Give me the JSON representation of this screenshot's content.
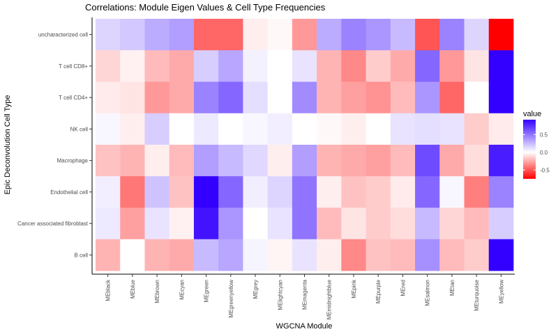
{
  "chart_data": {
    "type": "heatmap",
    "title": "Correlations: Module Eigen Values & Cell Type Frequencies",
    "xlabel": "WGCNA Module",
    "ylabel": "Epic Deconvolution Cell Type",
    "x": [
      "MEblack",
      "MEblue",
      "MEbrown",
      "MEcyan",
      "MEgreen",
      "MEgreenyellow",
      "MEgrey",
      "MElightcyan",
      "MEmagenta",
      "MEmidnightblue",
      "MEpink",
      "MEpurple",
      "MEred",
      "MEsalmon",
      "MEtan",
      "MEturquoise",
      "MEyellow"
    ],
    "y": [
      "uncharacterized cell",
      "T cell CD8+",
      "T cell CD4+",
      "NK cell",
      "Macrophage",
      "Endothelial cell",
      "Cancer associated fibroblast",
      "B cell"
    ],
    "values": [
      [
        0.15,
        0.2,
        0.3,
        0.35,
        -0.45,
        -0.45,
        -0.05,
        -0.02,
        -0.3,
        0.3,
        0.45,
        0.38,
        0.25,
        -0.5,
        0.45,
        0.15,
        -1.0
      ],
      [
        -0.12,
        -0.04,
        -0.2,
        -0.25,
        0.18,
        0.32,
        0.05,
        0.0,
        0.1,
        -0.22,
        -0.35,
        -0.15,
        -0.25,
        0.55,
        -0.3,
        -0.08,
        1.0
      ],
      [
        -0.06,
        -0.08,
        -0.3,
        -0.25,
        0.45,
        0.55,
        0.12,
        0.0,
        0.42,
        -0.22,
        -0.28,
        -0.32,
        -0.2,
        0.38,
        -0.45,
        0.0,
        1.0
      ],
      [
        0.03,
        -0.05,
        0.18,
        0.0,
        0.08,
        0.0,
        0.03,
        0.06,
        0.0,
        -0.02,
        -0.05,
        0.0,
        0.1,
        0.12,
        0.1,
        -0.15,
        -0.06
      ],
      [
        -0.18,
        -0.22,
        -0.05,
        -0.2,
        0.35,
        0.25,
        0.14,
        -0.05,
        0.35,
        -0.22,
        -0.25,
        -0.28,
        -0.2,
        0.65,
        -0.25,
        -0.1,
        0.82
      ],
      [
        0.06,
        -0.4,
        0.22,
        -0.18,
        0.95,
        0.55,
        0.06,
        0.15,
        0.5,
        -0.05,
        -0.18,
        -0.15,
        -0.06,
        0.55,
        0.03,
        -0.38,
        0.45
      ],
      [
        0.08,
        -0.28,
        0.1,
        -0.04,
        0.85,
        0.38,
        0.0,
        0.1,
        0.5,
        -0.2,
        -0.08,
        -0.15,
        -0.1,
        0.25,
        -0.12,
        -0.2,
        0.18
      ],
      [
        -0.22,
        0.0,
        -0.22,
        -0.25,
        0.25,
        0.32,
        0.04,
        -0.03,
        0.1,
        -0.05,
        -0.35,
        -0.18,
        -0.2,
        0.4,
        -0.2,
        -0.15,
        0.95
      ]
    ],
    "legend": {
      "title": "value",
      "ticks": [
        0.5,
        0.0,
        -0.5
      ],
      "tick_labels": [
        "0.5",
        "0.0",
        "-0.5"
      ],
      "range": [
        -0.75,
        0.92
      ],
      "colors": {
        "low": "#ff0000",
        "mid": "#ffffff",
        "high": "#3300ff"
      }
    }
  }
}
